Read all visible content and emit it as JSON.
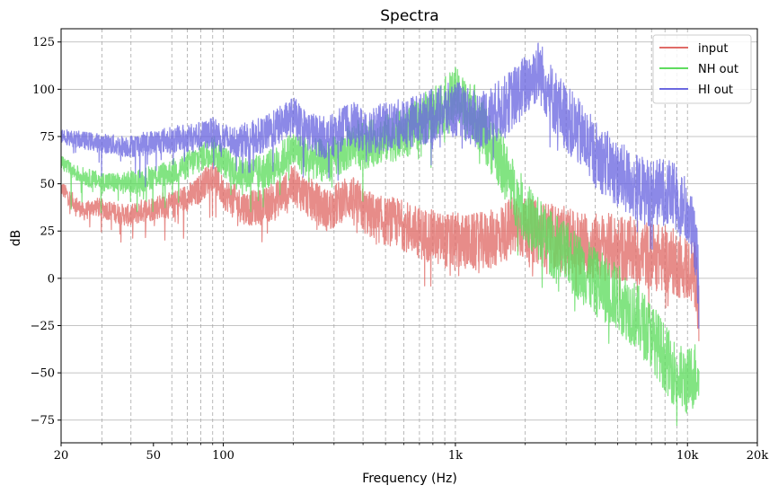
{
  "chart_data": {
    "type": "line",
    "title": "Spectra",
    "xlabel": "Frequency (Hz)",
    "ylabel": "dB",
    "x_scale": "log",
    "xlim": [
      20,
      20000
    ],
    "ylim": [
      -87,
      132
    ],
    "x_ticks": [
      {
        "value": 20,
        "label": "20"
      },
      {
        "value": 50,
        "label": "50"
      },
      {
        "value": 100,
        "label": "100"
      },
      {
        "value": 1000,
        "label": "1k"
      },
      {
        "value": 10000,
        "label": "10k"
      },
      {
        "value": 20000,
        "label": "20k"
      }
    ],
    "x_minor_grid": [
      30,
      40,
      60,
      70,
      80,
      90,
      200,
      300,
      400,
      500,
      600,
      700,
      800,
      900,
      2000,
      3000,
      4000,
      5000,
      6000,
      7000,
      8000,
      9000
    ],
    "y_ticks": [
      {
        "value": 125,
        "label": "125"
      },
      {
        "value": 100,
        "label": "100"
      },
      {
        "value": 75,
        "label": "75"
      },
      {
        "value": 50,
        "label": "50"
      },
      {
        "value": 25,
        "label": "25"
      },
      {
        "value": 0,
        "label": "0"
      },
      {
        "value": -25,
        "label": "−25"
      },
      {
        "value": -50,
        "label": "−50"
      },
      {
        "value": -75,
        "label": "−75"
      }
    ],
    "grid": true,
    "legend_position": "top-right",
    "series": [
      {
        "name": "input",
        "color": "#e06b68",
        "points": [
          [
            20,
            48
          ],
          [
            22,
            42
          ],
          [
            25,
            35
          ],
          [
            28,
            38
          ],
          [
            32,
            36
          ],
          [
            36,
            34
          ],
          [
            40,
            33
          ],
          [
            45,
            36
          ],
          [
            50,
            37
          ],
          [
            55,
            39
          ],
          [
            60,
            38
          ],
          [
            65,
            41
          ],
          [
            70,
            43
          ],
          [
            75,
            44
          ],
          [
            80,
            48
          ],
          [
            85,
            52
          ],
          [
            90,
            55
          ],
          [
            95,
            50
          ],
          [
            100,
            45
          ],
          [
            110,
            42
          ],
          [
            120,
            38
          ],
          [
            130,
            37
          ],
          [
            150,
            38
          ],
          [
            170,
            42
          ],
          [
            190,
            47
          ],
          [
            200,
            50
          ],
          [
            220,
            45
          ],
          [
            250,
            40
          ],
          [
            280,
            36
          ],
          [
            300,
            38
          ],
          [
            330,
            42
          ],
          [
            350,
            43
          ],
          [
            380,
            40
          ],
          [
            400,
            36
          ],
          [
            450,
            32
          ],
          [
            500,
            30
          ],
          [
            550,
            30
          ],
          [
            600,
            28
          ],
          [
            700,
            24
          ],
          [
            800,
            22
          ],
          [
            900,
            20
          ],
          [
            1000,
            20
          ],
          [
            1100,
            19
          ],
          [
            1200,
            19
          ],
          [
            1400,
            20
          ],
          [
            1600,
            24
          ],
          [
            1800,
            28
          ],
          [
            2000,
            26
          ],
          [
            2300,
            24
          ],
          [
            2600,
            22
          ],
          [
            3000,
            20
          ],
          [
            3500,
            18
          ],
          [
            4000,
            17
          ],
          [
            5000,
            16
          ],
          [
            6000,
            14
          ],
          [
            7000,
            12
          ],
          [
            8000,
            10
          ],
          [
            9000,
            8
          ],
          [
            10000,
            5
          ],
          [
            10500,
            3
          ],
          [
            11000,
            0
          ],
          [
            11200,
            -25
          ]
        ]
      },
      {
        "name": "NH out",
        "color": "#5fdc5f",
        "points": [
          [
            20,
            62
          ],
          [
            22,
            57
          ],
          [
            25,
            54
          ],
          [
            28,
            52
          ],
          [
            32,
            51
          ],
          [
            36,
            50
          ],
          [
            40,
            51
          ],
          [
            45,
            52
          ],
          [
            50,
            54
          ],
          [
            55,
            55
          ],
          [
            60,
            56
          ],
          [
            65,
            58
          ],
          [
            70,
            60
          ],
          [
            75,
            62
          ],
          [
            80,
            64
          ],
          [
            85,
            66
          ],
          [
            90,
            68
          ],
          [
            95,
            65
          ],
          [
            100,
            62
          ],
          [
            110,
            58
          ],
          [
            120,
            55
          ],
          [
            130,
            55
          ],
          [
            150,
            57
          ],
          [
            170,
            60
          ],
          [
            190,
            66
          ],
          [
            200,
            68
          ],
          [
            220,
            65
          ],
          [
            250,
            63
          ],
          [
            280,
            62
          ],
          [
            300,
            64
          ],
          [
            330,
            66
          ],
          [
            350,
            70
          ],
          [
            380,
            72
          ],
          [
            400,
            70
          ],
          [
            450,
            72
          ],
          [
            500,
            74
          ],
          [
            600,
            76
          ],
          [
            700,
            82
          ],
          [
            800,
            88
          ],
          [
            900,
            92
          ],
          [
            1000,
            97
          ],
          [
            1100,
            92
          ],
          [
            1200,
            88
          ],
          [
            1300,
            80
          ],
          [
            1400,
            72
          ],
          [
            1500,
            67
          ],
          [
            1600,
            60
          ],
          [
            1800,
            45
          ],
          [
            2000,
            35
          ],
          [
            2300,
            25
          ],
          [
            2600,
            18
          ],
          [
            3000,
            12
          ],
          [
            3500,
            5
          ],
          [
            4000,
            -2
          ],
          [
            5000,
            -10
          ],
          [
            6000,
            -20
          ],
          [
            7000,
            -30
          ],
          [
            8000,
            -42
          ],
          [
            9000,
            -52
          ],
          [
            10000,
            -55
          ],
          [
            10500,
            -52
          ],
          [
            11000,
            -50
          ],
          [
            11200,
            -45
          ]
        ]
      },
      {
        "name": "HI out",
        "color": "#6b68e0",
        "points": [
          [
            20,
            76
          ],
          [
            22,
            74
          ],
          [
            25,
            73
          ],
          [
            28,
            72
          ],
          [
            32,
            71
          ],
          [
            36,
            70
          ],
          [
            40,
            70
          ],
          [
            45,
            71
          ],
          [
            50,
            72
          ],
          [
            55,
            73
          ],
          [
            60,
            73
          ],
          [
            65,
            74
          ],
          [
            70,
            74
          ],
          [
            75,
            75
          ],
          [
            80,
            75
          ],
          [
            85,
            76
          ],
          [
            90,
            77
          ],
          [
            95,
            76
          ],
          [
            100,
            74
          ],
          [
            110,
            72
          ],
          [
            120,
            73
          ],
          [
            130,
            74
          ],
          [
            150,
            76
          ],
          [
            170,
            80
          ],
          [
            190,
            84
          ],
          [
            200,
            86
          ],
          [
            220,
            80
          ],
          [
            250,
            76
          ],
          [
            280,
            74
          ],
          [
            300,
            76
          ],
          [
            330,
            80
          ],
          [
            350,
            82
          ],
          [
            380,
            80
          ],
          [
            400,
            78
          ],
          [
            450,
            79
          ],
          [
            500,
            80
          ],
          [
            600,
            82
          ],
          [
            700,
            84
          ],
          [
            800,
            86
          ],
          [
            900,
            88
          ],
          [
            1000,
            90
          ],
          [
            1100,
            88
          ],
          [
            1200,
            84
          ],
          [
            1400,
            86
          ],
          [
            1600,
            90
          ],
          [
            1800,
            96
          ],
          [
            2000,
            102
          ],
          [
            2200,
            108
          ],
          [
            2300,
            110
          ],
          [
            2400,
            105
          ],
          [
            2600,
            96
          ],
          [
            3000,
            85
          ],
          [
            3500,
            75
          ],
          [
            4000,
            66
          ],
          [
            5000,
            55
          ],
          [
            6000,
            48
          ],
          [
            7000,
            45
          ],
          [
            8000,
            46
          ],
          [
            9000,
            42
          ],
          [
            10000,
            35
          ],
          [
            10500,
            25
          ],
          [
            11000,
            10
          ],
          [
            11200,
            -10
          ]
        ]
      }
    ]
  }
}
